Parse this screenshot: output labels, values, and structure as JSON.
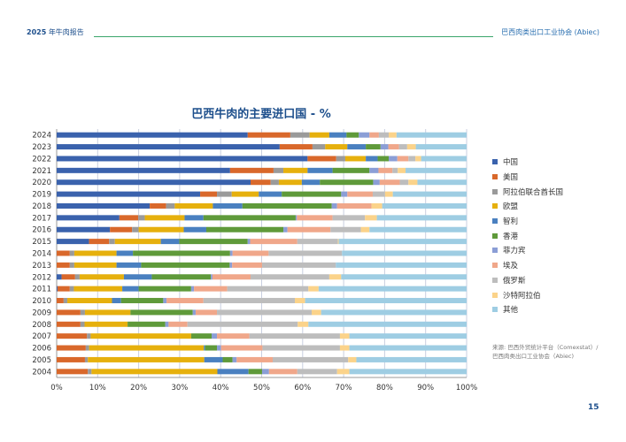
{
  "header": {
    "year": "2025",
    "title": "年牛肉报告",
    "org": "巴西肉类出口工业协会 (Abiec)"
  },
  "source": {
    "line1": "来源: 巴西外贸统计平台（Comexstat）/",
    "line2": "巴西肉类出口工业协会（Abiec)"
  },
  "page_number": "15",
  "chart_data": {
    "type": "bar",
    "orientation": "horizontal-stacked-100",
    "title": "巴西牛肉的主要进口国 - %",
    "xlabel": "",
    "ylabel": "",
    "xlim": [
      0,
      100
    ],
    "xticks": [
      "0%",
      "10%",
      "20%",
      "30%",
      "40%",
      "50%",
      "60%",
      "70%",
      "80%",
      "90%",
      "100%"
    ],
    "grid": true,
    "legend_position": "right",
    "categories": [
      "2024",
      "2023",
      "2022",
      "2021",
      "2020",
      "2019",
      "2018",
      "2017",
      "2016",
      "2015",
      "2014",
      "2013",
      "2012",
      "2011",
      "2010",
      "2009",
      "2008",
      "2007",
      "2006",
      "2005",
      "2004"
    ],
    "series": [
      {
        "name": "中国",
        "color": "#3a62ad",
        "values": [
          46.6,
          54.4,
          61.2,
          42.3,
          47.3,
          35.0,
          22.7,
          15.3,
          13.0,
          7.9,
          0,
          0,
          1.2,
          0.2,
          0,
          0,
          0,
          0,
          0,
          0,
          0
        ]
      },
      {
        "name": "美国",
        "color": "#d9682b",
        "values": [
          10.4,
          8.0,
          7.0,
          10.6,
          4.9,
          4.1,
          4.0,
          4.6,
          5.4,
          4.9,
          3.2,
          3.2,
          3.3,
          3.0,
          1.7,
          5.8,
          5.8,
          7.4,
          7.1,
          6.9,
          7.6
        ]
      },
      {
        "name": "阿拉伯联合酋长国",
        "color": "#9a9a9a",
        "values": [
          4.7,
          3.1,
          2.2,
          2.4,
          2.0,
          3.6,
          2.1,
          1.6,
          1.6,
          1.4,
          1.1,
          1.1,
          1.1,
          1.0,
          0.9,
          1.1,
          1.0,
          0.9,
          0.8,
          0.7,
          0.9
        ]
      },
      {
        "name": "欧盟",
        "color": "#e6b00d",
        "values": [
          4.8,
          5.4,
          5.0,
          5.9,
          5.6,
          6.6,
          9.3,
          9.7,
          11.0,
          11.2,
          10.3,
          10.3,
          10.8,
          11.8,
          10.9,
          11.1,
          10.5,
          24.5,
          28.0,
          28.4,
          30.7
        ]
      },
      {
        "name": "智利",
        "color": "#4a80c0",
        "values": [
          4.2,
          4.5,
          2.9,
          6.1,
          4.4,
          5.6,
          7.2,
          4.6,
          5.5,
          4.5,
          4.0,
          6.0,
          6.8,
          4.0,
          2.2,
          0,
          0,
          0,
          0.3,
          4.5,
          7.6
        ]
      },
      {
        "name": "香港",
        "color": "#5f9a3a",
        "values": [
          3.0,
          3.6,
          2.7,
          9.0,
          13.0,
          14.5,
          21.8,
          22.5,
          18.8,
          16.7,
          23.7,
          21.6,
          14.4,
          12.8,
          10.3,
          15.2,
          9.2,
          5.0,
          2.9,
          2.4,
          3.3
        ]
      },
      {
        "name": "菲力宾",
        "color": "#8b9ed6",
        "values": [
          2.6,
          1.9,
          2.1,
          2.2,
          1.6,
          1.5,
          1.3,
          0.3,
          1.0,
          0.6,
          0.6,
          0.6,
          0.4,
          0.7,
          0.8,
          0.7,
          0.8,
          1.3,
          1.0,
          1.0,
          1.7
        ]
      },
      {
        "name": "埃及",
        "color": "#f0a78a",
        "values": [
          2.3,
          2.6,
          2.7,
          3.4,
          4.9,
          6.2,
          8.4,
          8.7,
          10.5,
          11.5,
          8.8,
          7.3,
          9.3,
          8.1,
          9.0,
          5.2,
          4.6,
          7.9,
          10.1,
          8.8,
          6.9
        ]
      },
      {
        "name": "俄罗斯",
        "color": "#bdbdbd",
        "values": [
          2.4,
          2.0,
          1.7,
          1.3,
          2.1,
          3.0,
          0,
          7.9,
          7.4,
          9.9,
          17.9,
          18.0,
          19.2,
          19.8,
          22.3,
          23.1,
          26.9,
          22.1,
          18.9,
          18.4,
          9.7
        ]
      },
      {
        "name": "沙特阿拉伯",
        "color": "#fbd38a",
        "values": [
          1.9,
          2.1,
          1.4,
          1.9,
          2.2,
          1.9,
          2.6,
          2.9,
          2.1,
          0.2,
          0,
          0,
          2.9,
          2.5,
          2.5,
          2.3,
          2.6,
          2.3,
          2.3,
          2.0,
          3.0
        ]
      },
      {
        "name": "其他",
        "color": "#9ecde3",
        "values": [
          17.1,
          12.4,
          11.1,
          14.9,
          12.0,
          18.0,
          20.6,
          21.9,
          23.7,
          31.2,
          30.4,
          31.9,
          30.6,
          36.1,
          39.4,
          35.5,
          38.6,
          28.6,
          28.6,
          26.9,
          28.6
        ]
      }
    ]
  }
}
